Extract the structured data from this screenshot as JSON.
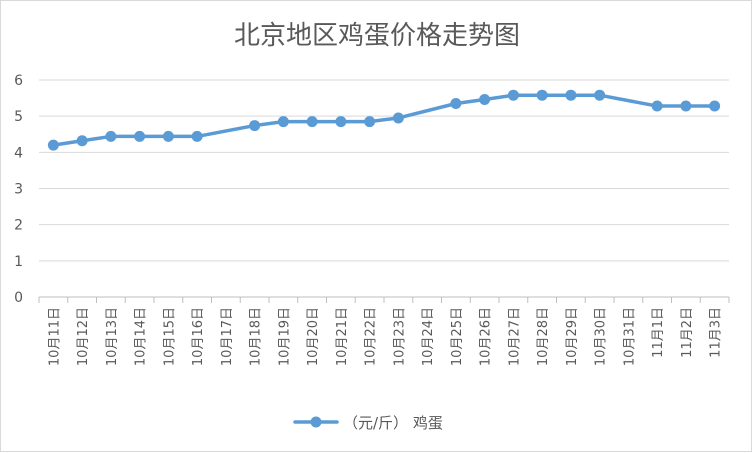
{
  "chart_data": {
    "type": "line",
    "title": "北京地区鸡蛋价格走势图",
    "xlabel": "",
    "ylabel": "",
    "categories": [
      "10月11日",
      "10月12日",
      "10月13日",
      "10月14日",
      "10月15日",
      "10月16日",
      "10月17日",
      "10月18日",
      "10月19日",
      "10月20日",
      "10月21日",
      "10月22日",
      "10月23日",
      "10月24日",
      "10月25日",
      "10月26日",
      "10月27日",
      "10月28日",
      "10月29日",
      "10月30日",
      "10月31日",
      "11月1日",
      "11月2日",
      "11月3日"
    ],
    "series": [
      {
        "name": "（元/斤） 鸡蛋",
        "values": [
          4.2,
          4.32,
          4.44,
          4.44,
          4.44,
          4.44,
          null,
          4.74,
          4.85,
          4.85,
          4.85,
          4.85,
          4.95,
          null,
          5.35,
          5.46,
          5.58,
          5.58,
          5.58,
          5.58,
          null,
          5.28,
          5.28,
          5.28
        ],
        "color": "#5b9bd5"
      }
    ],
    "ylim": [
      0,
      6
    ],
    "yticks": [
      "0",
      "1",
      "2",
      "3",
      "4",
      "5",
      "6"
    ],
    "grid": true,
    "legend": "bottom"
  }
}
